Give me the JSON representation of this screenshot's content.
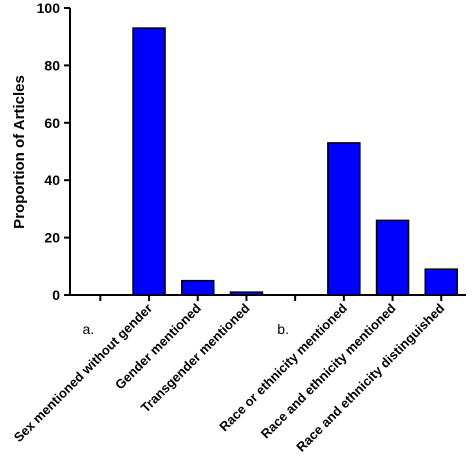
{
  "chart_data": {
    "type": "bar",
    "ylabel": "Proportion of Articles",
    "ylim": [
      0,
      100
    ],
    "yticks": [
      0,
      20,
      40,
      60,
      80,
      100
    ],
    "group_labels": [
      {
        "label": "a.",
        "after_category": 0
      },
      {
        "label": "b.",
        "after_category": 3
      }
    ],
    "categories": [
      "Sex mentioned without gender",
      "Gender mentioned",
      "Transgender mentioned",
      "Race or ethnicity mentioned",
      "Race and ethnicity mentioned",
      "Race and ethnicity distinguished"
    ],
    "values": [
      93,
      5,
      1,
      53,
      26,
      9
    ],
    "bar_color": "#0000ff",
    "grid": false,
    "legend": "none"
  }
}
